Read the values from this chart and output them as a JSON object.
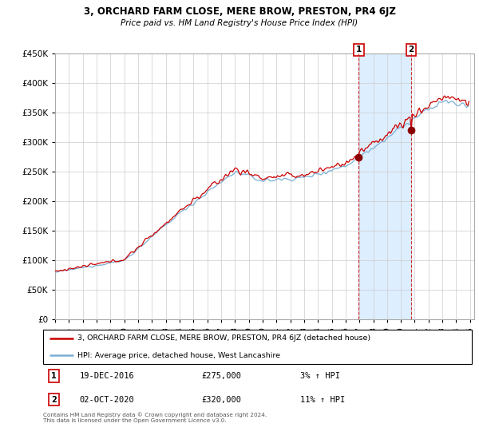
{
  "title": "3, ORCHARD FARM CLOSE, MERE BROW, PRESTON, PR4 6JZ",
  "subtitle": "Price paid vs. HM Land Registry's House Price Index (HPI)",
  "red_label": "3, ORCHARD FARM CLOSE, MERE BROW, PRESTON, PR4 6JZ (detached house)",
  "blue_label": "HPI: Average price, detached house, West Lancashire",
  "transaction1": {
    "date": "19-DEC-2016",
    "price": 275000,
    "hpi_pct": "3%",
    "label": "1",
    "year": 2016.958
  },
  "transaction2": {
    "date": "02-OCT-2020",
    "price": 320000,
    "hpi_pct": "11%",
    "label": "2",
    "year": 2020.75
  },
  "footer": "Contains HM Land Registry data © Crown copyright and database right 2024.\nThis data is licensed under the Open Government Licence v3.0.",
  "ylim": [
    0,
    450000
  ],
  "yticks": [
    0,
    50000,
    100000,
    150000,
    200000,
    250000,
    300000,
    350000,
    400000,
    450000
  ],
  "xlim": [
    1995,
    2025.3
  ],
  "start_year": 1995,
  "end_year": 2025,
  "red_color": "#cc0000",
  "blue_color": "#7bafd4",
  "shade_color": "#ddeeff",
  "dashed_red": "#cc0000",
  "box_color": "#cc0000",
  "dot_color": "#8b0000",
  "grid_color": "#cccccc",
  "bg_color": "#ffffff"
}
